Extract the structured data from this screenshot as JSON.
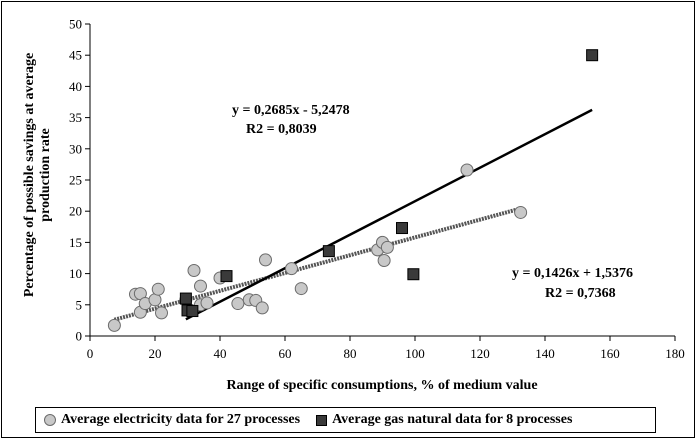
{
  "chart_data": {
    "type": "scatter",
    "xlabel": "Range of specific consumptions, % of medium value",
    "ylabel": "Percentage of possible savings at average production rate",
    "xlim": [
      0,
      180
    ],
    "ylim": [
      0,
      50
    ],
    "xticks": [
      0,
      20,
      40,
      60,
      80,
      100,
      120,
      140,
      160,
      180
    ],
    "yticks": [
      0,
      5,
      10,
      15,
      20,
      25,
      30,
      35,
      40,
      45,
      50
    ],
    "gridlines": false,
    "series": [
      {
        "name": "Average electricity data for 27 processes",
        "marker": "circle",
        "color": "#c8c8c8",
        "points": [
          [
            7.5,
            1.7
          ],
          [
            14,
            6.7
          ],
          [
            15.5,
            6.8
          ],
          [
            15.5,
            3.8
          ],
          [
            17,
            5.2
          ],
          [
            20,
            5.8
          ],
          [
            21,
            7.5
          ],
          [
            22,
            3.7
          ],
          [
            32,
            10.5
          ],
          [
            34,
            8.0
          ],
          [
            34,
            5.0
          ],
          [
            36,
            5.3
          ],
          [
            40,
            9.3
          ],
          [
            45.5,
            5.2
          ],
          [
            49,
            5.8
          ],
          [
            51,
            5.7
          ],
          [
            53,
            4.5
          ],
          [
            54,
            12.2
          ],
          [
            62,
            10.8
          ],
          [
            65,
            7.6
          ],
          [
            88.5,
            13.8
          ],
          [
            90,
            15.0
          ],
          [
            90.5,
            12.1
          ],
          [
            91.5,
            14.2
          ],
          [
            116,
            26.6
          ],
          [
            132.5,
            19.8
          ],
          [
            29.5,
            5.8
          ]
        ],
        "trendline": {
          "slope": 0.1426,
          "intercept": 1.5376,
          "x_range": [
            7.5,
            132.5
          ],
          "equation": "y = 0,1426x + 1,5376",
          "r2_label": "R2 = 0,7368"
        }
      },
      {
        "name": "Average gas natural data for 8 processes",
        "marker": "square",
        "color": "#3a3a3a",
        "points": [
          [
            29.5,
            6.0
          ],
          [
            30,
            4.1
          ],
          [
            31.5,
            4.0
          ],
          [
            42,
            9.6
          ],
          [
            73.5,
            13.6
          ],
          [
            96,
            17.3
          ],
          [
            99.5,
            9.9
          ],
          [
            154.5,
            45.0
          ]
        ],
        "trendline": {
          "slope": 0.2685,
          "intercept": -5.2478,
          "x_range": [
            29.5,
            154.5
          ],
          "equation": "y = 0,2685x - 5,2478",
          "r2_label": "R2 = 0,8039"
        }
      }
    ],
    "legend_position": "bottom"
  }
}
